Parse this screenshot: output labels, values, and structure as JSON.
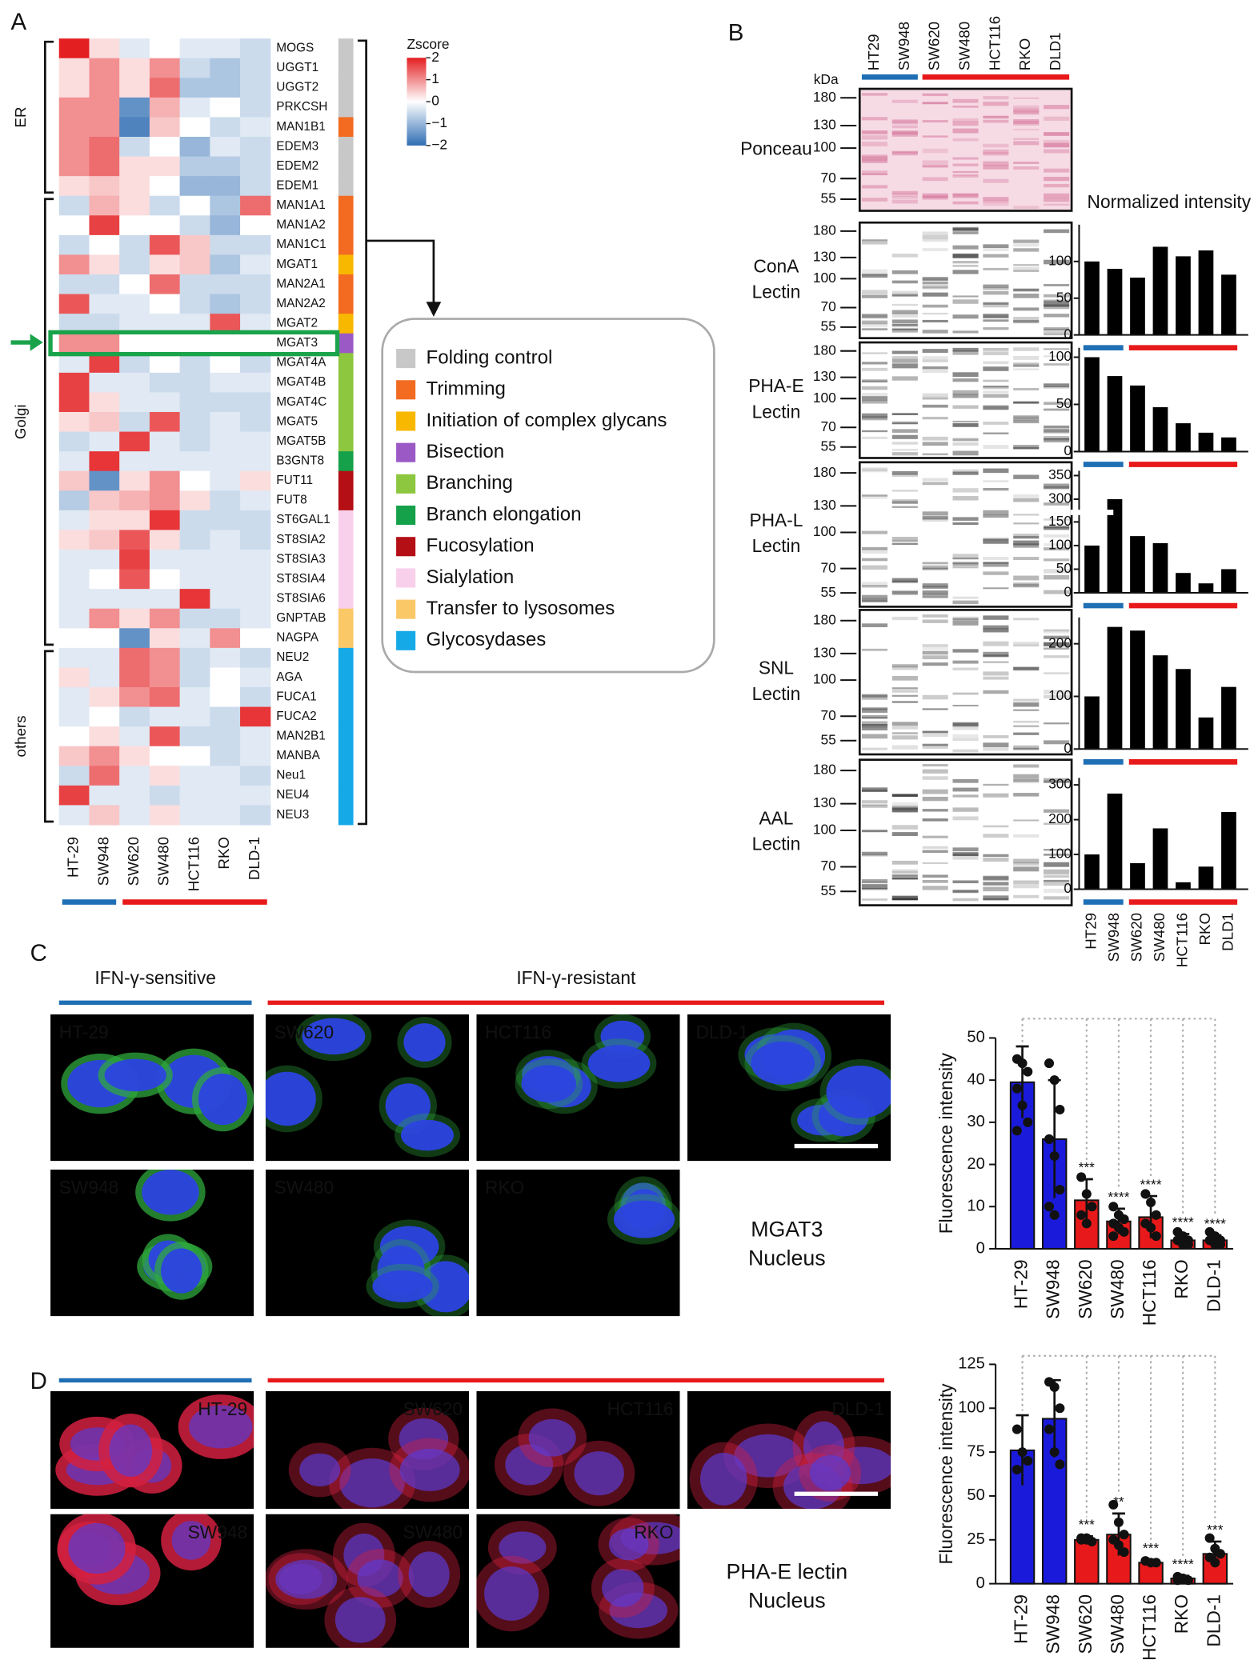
{
  "panel_labels": [
    "A",
    "B",
    "C",
    "D"
  ],
  "chart_data": [
    {
      "type": "heatmap",
      "columns": [
        "HT-29",
        "SW948",
        "SW620",
        "SW480",
        "HCT116",
        "RKO",
        "DLD-1"
      ],
      "column_colors": [
        "#1f6fb5",
        "#1f6fb5",
        "#e8191a",
        "#e8191a",
        "#e8191a",
        "#e8191a",
        "#e8191a"
      ],
      "rows": [
        "MOGS",
        "UGGT1",
        "UGGT2",
        "PRKCSH",
        "MAN1B1",
        "EDEM3",
        "EDEM2",
        "EDEM1",
        "MAN1A1",
        "MAN1A2",
        "MAN1C1",
        "MGAT1",
        "MAN2A1",
        "MAN2A2",
        "MGAT2",
        "MGAT3",
        "MGAT4A",
        "MGAT4B",
        "MGAT4C",
        "MGAT5",
        "MGAT5B",
        "B3GNT8",
        "FUT11",
        "FUT8",
        "ST6GAL1",
        "ST8SIA2",
        "ST8SIA3",
        "ST8SIA4",
        "ST8SIA6",
        "GNPTAB",
        "NAGPA",
        "NEU2",
        "AGA",
        "FUCA1",
        "FUCA2",
        "MAN2B1",
        "MANBA",
        "Neu1",
        "NEU4",
        "NEU3"
      ],
      "values": [
        [
          2,
          0.3,
          -0.3,
          0,
          -0.3,
          -0.3,
          -0.5
        ],
        [
          0.3,
          1,
          0.3,
          1,
          -0.5,
          -0.8,
          -0.5
        ],
        [
          0.3,
          1,
          0.3,
          1.3,
          -0.8,
          -0.8,
          -0.5
        ],
        [
          1,
          1,
          -1.5,
          0.7,
          -0.3,
          0,
          -0.5
        ],
        [
          1,
          1,
          -1.7,
          0.5,
          0,
          -0.5,
          -0.3
        ],
        [
          1,
          1.3,
          -0.5,
          0,
          -1,
          -0.3,
          -0.5
        ],
        [
          1,
          1.3,
          0.3,
          0.3,
          -0.7,
          -0.7,
          -0.5
        ],
        [
          0.3,
          0.5,
          0.3,
          0,
          -1,
          -1,
          -0.5
        ],
        [
          -0.5,
          0.7,
          0.3,
          -0.5,
          0,
          -0.8,
          1.3
        ],
        [
          0,
          1.7,
          0,
          0,
          -0.5,
          -1,
          0
        ],
        [
          -0.5,
          0,
          -0.5,
          1.5,
          0.5,
          -0.5,
          -0.5
        ],
        [
          1,
          0.3,
          -0.5,
          0.3,
          0.5,
          -0.8,
          -0.3
        ],
        [
          -0.5,
          -0.5,
          0,
          1.3,
          -0.5,
          -0.5,
          -0.5
        ],
        [
          1.5,
          -0.3,
          -0.3,
          0,
          -0.5,
          -0.8,
          -0.5
        ],
        [
          -0.5,
          -0.5,
          -0.3,
          -0.3,
          -0.3,
          1.5,
          -0.3
        ],
        [
          1,
          1,
          0,
          0,
          0,
          0,
          0
        ],
        [
          -0.3,
          1.7,
          -0.5,
          0,
          -0.5,
          0,
          -0.5
        ],
        [
          1.7,
          -0.3,
          -0.3,
          -0.5,
          -0.5,
          -0.3,
          -0.3
        ],
        [
          1.7,
          0.3,
          -0.3,
          -0.3,
          -0.5,
          -0.5,
          -0.5
        ],
        [
          0.3,
          0.5,
          -0.5,
          1.5,
          -0.5,
          -0.3,
          -0.5
        ],
        [
          -0.5,
          -0.3,
          1.7,
          -0.3,
          -0.5,
          -0.3,
          -0.3
        ],
        [
          -0.3,
          1.8,
          -0.3,
          -0.3,
          -0.3,
          -0.3,
          -0.3
        ],
        [
          0.5,
          -1.5,
          0.3,
          1,
          0,
          -0.3,
          0.3
        ],
        [
          -0.7,
          0.5,
          0.7,
          1,
          0.3,
          -0.5,
          -0.3
        ],
        [
          -0.3,
          0.3,
          0.3,
          1.8,
          -0.5,
          -0.5,
          -0.5
        ],
        [
          0.3,
          0.5,
          1.5,
          0.3,
          -0.5,
          -0.3,
          -0.5
        ],
        [
          -0.3,
          -0.3,
          1.7,
          -0.3,
          -0.3,
          -0.3,
          -0.3
        ],
        [
          -0.3,
          0,
          1.5,
          0,
          -0.3,
          -0.3,
          -0.3
        ],
        [
          -0.3,
          -0.3,
          -0.3,
          -0.3,
          1.8,
          -0.3,
          -0.3
        ],
        [
          -0.3,
          1,
          0.3,
          1,
          -0.5,
          -0.5,
          -0.3
        ],
        [
          0,
          0,
          -1.5,
          0.3,
          -0.3,
          1,
          0
        ],
        [
          -0.3,
          -0.3,
          1.3,
          1,
          -0.5,
          -0.3,
          -0.5
        ],
        [
          0.3,
          -0.3,
          1.3,
          1,
          -0.5,
          0,
          -0.3
        ],
        [
          -0.3,
          0.3,
          1,
          1.3,
          -0.3,
          0,
          -0.5
        ],
        [
          -0.3,
          0,
          -0.5,
          -0.3,
          -0.3,
          -0.5,
          1.8
        ],
        [
          0,
          0.3,
          -0.3,
          1.5,
          -0.5,
          -0.5,
          -0.3
        ],
        [
          0.5,
          1,
          0.3,
          0,
          0,
          -0.5,
          -0.3
        ],
        [
          -0.5,
          1.3,
          -0.3,
          0.3,
          -0.3,
          -0.3,
          -0.5
        ],
        [
          1.7,
          -0.3,
          -0.3,
          -0.5,
          -0.3,
          -0.3,
          -0.3
        ],
        [
          -0.3,
          0.5,
          -0.3,
          0.3,
          -0.3,
          -0.3,
          -0.5
        ]
      ],
      "row_colors": [
        "#c8c8c8",
        "#c8c8c8",
        "#c8c8c8",
        "#c8c8c8",
        "#f26b21",
        "#c8c8c8",
        "#c8c8c8",
        "#c8c8c8",
        "#f26b21",
        "#f26b21",
        "#f26b21",
        "#f9b800",
        "#f26b21",
        "#f26b21",
        "#f9b800",
        "#9b59c6",
        "#8dc63f",
        "#8dc63f",
        "#8dc63f",
        "#8dc63f",
        "#8dc63f",
        "#15a04a",
        "#b30f14",
        "#b30f14",
        "#f8d0ec",
        "#f8d0ec",
        "#f8d0ec",
        "#f8d0ec",
        "#f8d0ec",
        "#fbc868",
        "#fbc868",
        "#15a9e8",
        "#15a9e8",
        "#15a9e8",
        "#15a9e8",
        "#15a9e8",
        "#15a9e8",
        "#15a9e8",
        "#15a9e8",
        "#15a9e8"
      ],
      "row_groups": [
        {
          "label": "ER",
          "start": 0,
          "end": 7
        },
        {
          "label": "Golgi",
          "start": 8,
          "end": 30
        },
        {
          "label": "others",
          "start": 31,
          "end": 39
        }
      ],
      "highlight_row": 15,
      "highlight_color": "#1aa34a",
      "colorbar": {
        "title": "Zscore",
        "lim": [
          -2,
          2
        ],
        "ticks": [
          2,
          1,
          0,
          {
            "value": -1,
            "label": "−1"
          },
          {
            "value": -2,
            "label": "−2"
          }
        ],
        "colors": [
          "#2f6db3",
          "#ffffff",
          "#e41f22"
        ]
      },
      "legend": [
        {
          "name": "Folding control",
          "color": "#c8c8c8"
        },
        {
          "name": "Trimming",
          "color": "#f26b21"
        },
        {
          "name": "Initiation of complex glycans",
          "color": "#f9b800"
        },
        {
          "name": "Bisection",
          "color": "#9b59c6"
        },
        {
          "name": "Branching",
          "color": "#8dc63f"
        },
        {
          "name": "Branch elongation",
          "color": "#15a04a"
        },
        {
          "name": "Fucosylation",
          "color": "#b30f14"
        },
        {
          "name": "Sialylation",
          "color": "#f8d0ec"
        },
        {
          "name": "Transfer to lysosomes",
          "color": "#fbc868"
        },
        {
          "name": "Glycosydases",
          "color": "#15a9e8"
        }
      ]
    },
    {
      "type": "bar",
      "values": [
        100,
        90,
        78,
        120,
        107,
        115,
        82
      ],
      "ylim": [
        0,
        150
      ],
      "yticks": [
        0,
        50,
        100
      ],
      "color": "#000000"
    },
    {
      "type": "bar",
      "values": [
        100,
        80,
        70,
        47,
        30,
        20,
        15
      ],
      "ylim": [
        0,
        110
      ],
      "yticks": [
        0,
        50,
        100
      ],
      "color": "#000000"
    },
    {
      "type": "bar",
      "values": [
        100,
        300,
        120,
        105,
        42,
        20,
        50
      ],
      "ylim": [
        0,
        360
      ],
      "axis_break": [
        160,
        280
      ],
      "yticks": [
        0,
        50,
        100,
        150,
        300,
        350
      ],
      "color": "#000000"
    },
    {
      "type": "bar",
      "values": [
        100,
        232,
        225,
        178,
        152,
        60,
        118
      ],
      "ylim": [
        0,
        250
      ],
      "yticks": [
        0,
        100,
        200
      ],
      "color": "#000000"
    },
    {
      "type": "bar",
      "categories": [
        "HT29",
        "SW948",
        "SW620",
        "SW480",
        "HCT116",
        "RKO",
        "DLD1"
      ],
      "values": [
        100,
        275,
        75,
        175,
        20,
        65,
        222
      ],
      "ylim": [
        0,
        320
      ],
      "yticks": [
        0,
        100,
        200,
        300
      ],
      "color": "#000000"
    },
    {
      "type": "bar",
      "ylabel": "Fluorescence intensity",
      "categories": [
        "HT-29",
        "SW948",
        "SW620",
        "SW480",
        "HCT116",
        "RKO",
        "DLD-1"
      ],
      "values": [
        39.5,
        26,
        11.5,
        6.5,
        7.5,
        2,
        2
      ],
      "errors": [
        8.5,
        14,
        5,
        3,
        5,
        1.5,
        1.2
      ],
      "points": [
        [
          45,
          44,
          42,
          38,
          34,
          30,
          28
        ],
        [
          44,
          40,
          33,
          26,
          22,
          14,
          10,
          8
        ],
        [
          17,
          13,
          10,
          8,
          6
        ],
        [
          10,
          8,
          7,
          6,
          5,
          4,
          3
        ],
        [
          13,
          11,
          8,
          6,
          5,
          3
        ],
        [
          4,
          3,
          2,
          2,
          1,
          1
        ],
        [
          4,
          3,
          2,
          2,
          1,
          1
        ]
      ],
      "significance": [
        null,
        null,
        "***",
        "****",
        "****",
        "****",
        "****"
      ],
      "colors": [
        "#1a1adb",
        "#1a1adb",
        "#e8191a",
        "#e8191a",
        "#e8191a",
        "#e8191a",
        "#e8191a"
      ],
      "ylim": [
        0,
        50
      ],
      "yticks": [
        0,
        10,
        20,
        30,
        40,
        50
      ]
    },
    {
      "type": "bar",
      "ylabel": "Fluorescence intensity",
      "categories": [
        "HT-29",
        "SW948",
        "SW620",
        "SW480",
        "HCT116",
        "RKO",
        "DLD-1"
      ],
      "values": [
        76,
        94,
        25,
        28,
        12,
        3,
        17
      ],
      "errors": [
        20,
        22,
        2,
        12,
        1.5,
        1.5,
        7
      ],
      "points": [
        [
          88,
          75,
          70,
          65
        ],
        [
          115,
          112,
          100,
          88,
          75,
          68
        ],
        [
          26,
          25,
          24,
          25,
          26
        ],
        [
          45,
          35,
          28,
          25,
          22,
          18
        ],
        [
          13,
          12,
          12
        ],
        [
          4,
          3,
          2,
          2,
          3
        ],
        [
          26,
          20,
          17,
          15,
          12
        ]
      ],
      "significance": [
        null,
        null,
        "***",
        "**",
        "***",
        "****",
        "***"
      ],
      "colors": [
        "#1a1adb",
        "#1a1adb",
        "#e8191a",
        "#e8191a",
        "#e8191a",
        "#e8191a",
        "#e8191a"
      ],
      "ylim": [
        0,
        125
      ],
      "yticks": [
        0,
        25,
        50,
        75,
        100,
        125
      ]
    }
  ],
  "blots": {
    "lanes": [
      "HT29",
      "SW948",
      "SW620",
      "SW480",
      "HCT116",
      "RKO",
      "DLD1"
    ],
    "lane_colors": [
      "#1f6fb5",
      "#1f6fb5",
      "#e8191a",
      "#e8191a",
      "#e8191a",
      "#e8191a",
      "#e8191a"
    ],
    "unit": "kDa",
    "title": "Normalized intensity",
    "rows": [
      {
        "label": [
          "Ponceau"
        ],
        "markers": [
          180,
          130,
          100,
          70,
          55
        ]
      },
      {
        "label": [
          "ConA",
          "Lectin"
        ],
        "markers": [
          180,
          130,
          100,
          70,
          55
        ]
      },
      {
        "label": [
          "PHA-E",
          "Lectin"
        ],
        "markers": [
          180,
          130,
          100,
          70,
          55
        ]
      },
      {
        "label": [
          "PHA-L",
          "Lectin"
        ],
        "markers": [
          180,
          130,
          100,
          70,
          55
        ]
      },
      {
        "label": [
          "SNL",
          "Lectin"
        ],
        "markers": [
          180,
          130,
          100,
          70,
          55
        ]
      },
      {
        "label": [
          "AAL",
          "Lectin"
        ],
        "markers": [
          180,
          130,
          100,
          70,
          55
        ]
      }
    ]
  },
  "microscopy": [
    {
      "groups": [
        {
          "label": "IFN-γ-sensitive",
          "color": "#1f6fb5"
        },
        {
          "label": "IFN-γ-resistant",
          "color": "#e8191a"
        }
      ],
      "images": [
        "HT-29",
        "SW620",
        "HCT116",
        "DLD-1",
        "SW948",
        "SW480",
        "RKO"
      ],
      "stains": [
        {
          "name": "MGAT3",
          "color": "#22b14c"
        },
        {
          "name": "Nucleus",
          "color": "#1f4fd0"
        }
      ]
    },
    {
      "groups": [
        {
          "color": "#1f6fb5"
        },
        {
          "color": "#e8191a"
        }
      ],
      "images": [
        "HT-29",
        "SW620",
        "HCT116",
        "DLD-1",
        "SW948",
        "SW480",
        "RKO"
      ],
      "stains": [
        {
          "name": "PHA-E lectin",
          "color": "#e8191a"
        },
        {
          "name": "Nucleus",
          "color": "#1f4fd0"
        }
      ]
    }
  ]
}
